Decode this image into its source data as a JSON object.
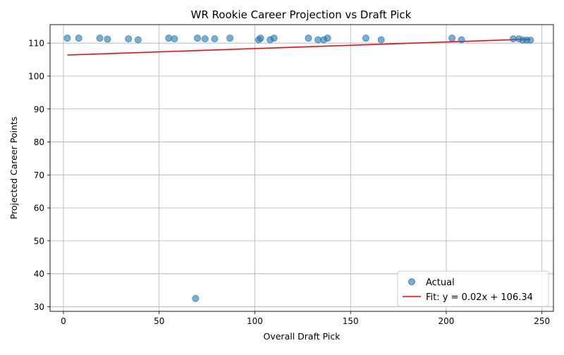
{
  "chart_data": {
    "type": "scatter",
    "title": "WR Rookie Career Projection vs Draft Pick",
    "xlabel": "Overall Draft Pick",
    "ylabel": "Projected Career Points",
    "xlim": [
      -7,
      256
    ],
    "ylim": [
      28.6,
      115.6
    ],
    "xticks": [
      0,
      50,
      100,
      150,
      200,
      250
    ],
    "yticks": [
      30,
      40,
      50,
      60,
      70,
      80,
      90,
      100,
      110
    ],
    "grid": true,
    "legend_position": "lower-right",
    "series": [
      {
        "name": "Actual",
        "kind": "scatter",
        "color": "#1f77b4",
        "points": [
          [
            2,
            111.5
          ],
          [
            8,
            111.5
          ],
          [
            19,
            111.5
          ],
          [
            23,
            111.2
          ],
          [
            34,
            111.3
          ],
          [
            39,
            111.0
          ],
          [
            55,
            111.5
          ],
          [
            58,
            111.3
          ],
          [
            69,
            32.5
          ],
          [
            70,
            111.5
          ],
          [
            74,
            111.3
          ],
          [
            79,
            111.3
          ],
          [
            87,
            111.5
          ],
          [
            102,
            111.0
          ],
          [
            103,
            111.5
          ],
          [
            108,
            111.0
          ],
          [
            110,
            111.5
          ],
          [
            128,
            111.5
          ],
          [
            133,
            111.0
          ],
          [
            136,
            111.0
          ],
          [
            138,
            111.5
          ],
          [
            158,
            111.5
          ],
          [
            166,
            111.0
          ],
          [
            203,
            111.5
          ],
          [
            208,
            111.0
          ],
          [
            235,
            111.3
          ],
          [
            238,
            111.3
          ],
          [
            240,
            110.9
          ],
          [
            242,
            110.9
          ],
          [
            244,
            110.9
          ]
        ]
      },
      {
        "name": "Fit: y = 0.02x + 106.34",
        "kind": "line",
        "color": "#ff0000",
        "slope": 0.02,
        "intercept": 106.34,
        "x_range": [
          2,
          244
        ]
      }
    ]
  }
}
